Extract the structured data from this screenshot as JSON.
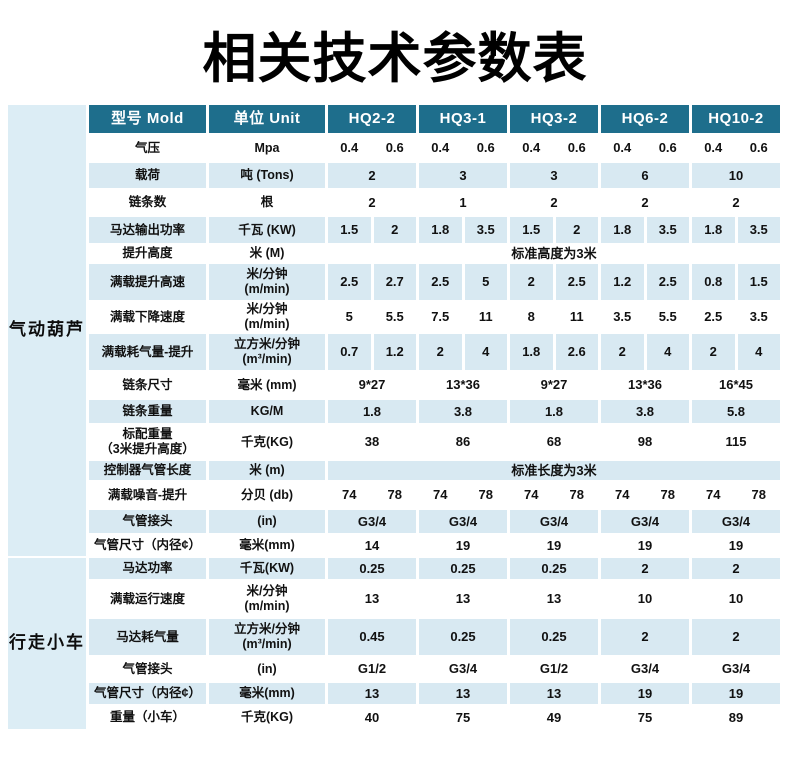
{
  "page": {
    "title": "相关技术参数表"
  },
  "table": {
    "header": [
      "型号 Mold",
      "单位 Unit",
      "HQ2-2",
      "HQ3-1",
      "HQ3-2",
      "HQ6-2",
      "HQ10-2"
    ],
    "colors": {
      "header_bg": "#1e6e8c",
      "row_alt_bg": "#d8e9f2",
      "section_bg": "#dcedf5",
      "header_text": "#ffffff",
      "body_text": "#111111"
    },
    "sections": [
      {
        "label": "气动葫芦",
        "rows": [
          {
            "label": "气压",
            "unit": [
              "Mpa"
            ],
            "type": "pair",
            "values": [
              "0.4",
              "0.6",
              "0.4",
              "0.6",
              "0.4",
              "0.6",
              "0.4",
              "0.6",
              "0.4",
              "0.6"
            ]
          },
          {
            "label": "载荷",
            "unit": [
              "吨 (Tons)"
            ],
            "type": "single",
            "values": [
              "2",
              "3",
              "3",
              "6",
              "10"
            ]
          },
          {
            "label": "链条数",
            "unit": [
              "根"
            ],
            "type": "single",
            "values": [
              "2",
              "1",
              "2",
              "2",
              "2"
            ]
          },
          {
            "label": "马达输出功率",
            "unit": [
              "千瓦 (KW)"
            ],
            "type": "pair",
            "values": [
              "1.5",
              "2",
              "1.8",
              "3.5",
              "1.5",
              "2",
              "1.8",
              "3.5",
              "1.8",
              "3.5"
            ]
          },
          {
            "label": "提升高度",
            "unit": [
              "米 (M)"
            ],
            "type": "span",
            "span_text": "标准高度为3米"
          },
          {
            "label": "满载提升高速",
            "unit": [
              "米/分钟",
              "(m/min)"
            ],
            "type": "pair",
            "values": [
              "2.5",
              "2.7",
              "2.5",
              "5",
              "2",
              "2.5",
              "1.2",
              "2.5",
              "0.8",
              "1.5"
            ]
          },
          {
            "label": "满载下降速度",
            "unit": [
              "米/分钟",
              "(m/min)"
            ],
            "type": "pair",
            "values": [
              "5",
              "5.5",
              "7.5",
              "11",
              "8",
              "11",
              "3.5",
              "5.5",
              "2.5",
              "3.5"
            ]
          },
          {
            "label": "满载耗气量-提升",
            "unit": [
              "立方米/分钟",
              "(m³/min)"
            ],
            "type": "pair",
            "values": [
              "0.7",
              "1.2",
              "2",
              "4",
              "1.8",
              "2.6",
              "2",
              "4",
              "2",
              "4"
            ]
          },
          {
            "label": "链条尺寸",
            "unit": [
              "毫米 (mm)"
            ],
            "type": "single",
            "values": [
              "9*27",
              "13*36",
              "9*27",
              "13*36",
              "16*45"
            ]
          },
          {
            "label": "链条重量",
            "unit": [
              "KG/M"
            ],
            "type": "single",
            "values": [
              "1.8",
              "3.8",
              "1.8",
              "3.8",
              "5.8"
            ]
          },
          {
            "label": "标配重量",
            "label2": "（3米提升高度）",
            "unit": [
              "千克(KG)"
            ],
            "type": "single",
            "values": [
              "38",
              "86",
              "68",
              "98",
              "115"
            ]
          },
          {
            "label": "控制器气管长度",
            "unit": [
              "米 (m)"
            ],
            "type": "span",
            "span_text": "标准长度为3米"
          },
          {
            "label": "满载噪音-提升",
            "unit": [
              "分贝 (db)"
            ],
            "type": "pair",
            "values": [
              "74",
              "78",
              "74",
              "78",
              "74",
              "78",
              "74",
              "78",
              "74",
              "78"
            ]
          },
          {
            "label": "气管接头",
            "unit": [
              "(in)"
            ],
            "type": "single",
            "values": [
              "G3/4",
              "G3/4",
              "G3/4",
              "G3/4",
              "G3/4"
            ]
          },
          {
            "label": "气管尺寸（内径¢）",
            "unit": [
              "毫米(mm)"
            ],
            "type": "single",
            "values": [
              "14",
              "19",
              "19",
              "19",
              "19"
            ]
          }
        ]
      },
      {
        "label": "行走小车",
        "rows": [
          {
            "label": "马达功率",
            "unit": [
              "千瓦(KW)"
            ],
            "type": "single",
            "values": [
              "0.25",
              "0.25",
              "0.25",
              "2",
              "2"
            ]
          },
          {
            "label": "满载运行速度",
            "unit": [
              "米/分钟",
              "(m/min)"
            ],
            "type": "single",
            "values": [
              "13",
              "13",
              "13",
              "10",
              "10"
            ]
          },
          {
            "label": "马达耗气量",
            "unit": [
              "立方米/分钟",
              "(m³/min)"
            ],
            "type": "single",
            "values": [
              "0.45",
              "0.25",
              "0.25",
              "2",
              "2"
            ]
          },
          {
            "label": "气管接头",
            "unit": [
              "(in)"
            ],
            "type": "single",
            "values": [
              "G1/2",
              "G3/4",
              "G1/2",
              "G3/4",
              "G3/4"
            ]
          },
          {
            "label": "气管尺寸（内径¢）",
            "unit": [
              "毫米(mm)"
            ],
            "type": "single",
            "values": [
              "13",
              "13",
              "13",
              "19",
              "19"
            ]
          },
          {
            "label": "重量（小车）",
            "unit": [
              "千克(KG)"
            ],
            "type": "single",
            "values": [
              "40",
              "75",
              "49",
              "75",
              "89"
            ]
          }
        ]
      }
    ]
  }
}
